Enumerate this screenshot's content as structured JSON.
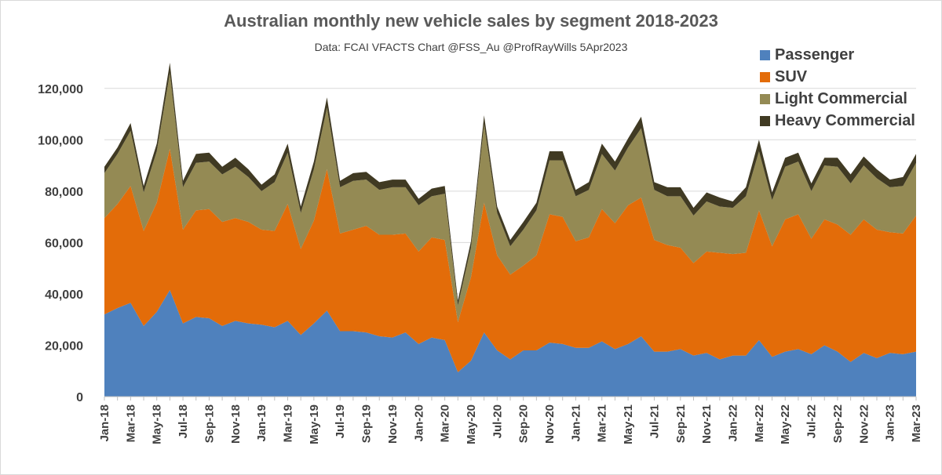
{
  "chart_data": {
    "type": "area",
    "stacked": true,
    "title": "Australian monthly new vehicle sales by segment 2018-2023",
    "subtitle": "Data: FCAI VFACTS  Chart @FSS_Au @ProfRayWills 5Apr2023",
    "xlabel": "",
    "ylabel": "",
    "ylim": [
      0,
      130000
    ],
    "yticks": [
      0,
      20000,
      40000,
      60000,
      80000,
      100000,
      120000
    ],
    "ytick_labels": [
      "0",
      "20,000",
      "40,000",
      "60,000",
      "80,000",
      "100,000",
      "120,000"
    ],
    "grid": true,
    "legend_position": "top-right",
    "categories": [
      "Jan-18",
      "Feb-18",
      "Mar-18",
      "Apr-18",
      "May-18",
      "Jun-18",
      "Jul-18",
      "Aug-18",
      "Sep-18",
      "Oct-18",
      "Nov-18",
      "Dec-18",
      "Jan-19",
      "Feb-19",
      "Mar-19",
      "Apr-19",
      "May-19",
      "Jun-19",
      "Jul-19",
      "Aug-19",
      "Sep-19",
      "Oct-19",
      "Nov-19",
      "Dec-19",
      "Jan-20",
      "Feb-20",
      "Mar-20",
      "Apr-20",
      "May-20",
      "Jun-20",
      "Jul-20",
      "Aug-20",
      "Sep-20",
      "Oct-20",
      "Nov-20",
      "Dec-20",
      "Jan-21",
      "Feb-21",
      "Mar-21",
      "Apr-21",
      "May-21",
      "Jun-21",
      "Jul-21",
      "Aug-21",
      "Sep-21",
      "Oct-21",
      "Nov-21",
      "Dec-21",
      "Jan-22",
      "Feb-22",
      "Mar-22",
      "Apr-22",
      "May-22",
      "Jun-22",
      "Jul-22",
      "Aug-22",
      "Sep-22",
      "Oct-22",
      "Nov-22",
      "Dec-22",
      "Jan-23",
      "Feb-23",
      "Mar-23"
    ],
    "x_tick_labels": [
      "Jan-18",
      "Mar-18",
      "May-18",
      "Jul-18",
      "Sep-18",
      "Nov-18",
      "Jan-19",
      "Mar-19",
      "May-19",
      "Jul-19",
      "Sep-19",
      "Nov-19",
      "Jan-20",
      "Mar-20",
      "May-20",
      "Jul-20",
      "Sep-20",
      "Nov-20",
      "Jan-21",
      "Mar-21",
      "May-21",
      "Jul-21",
      "Sep-21",
      "Nov-21",
      "Jan-22",
      "Mar-22",
      "May-22",
      "Jul-22",
      "Sep-22",
      "Nov-22",
      "Jan-23",
      "Mar-23"
    ],
    "series": [
      {
        "name": "Passenger",
        "color": "#4f81bd",
        "values": [
          32000,
          34500,
          36500,
          27500,
          33000,
          41500,
          28500,
          31000,
          30500,
          27500,
          29500,
          28500,
          28000,
          27000,
          29500,
          24000,
          28500,
          33500,
          25500,
          25500,
          25000,
          23500,
          23000,
          25000,
          20500,
          23000,
          22000,
          9500,
          14000,
          25000,
          18000,
          14500,
          18000,
          18000,
          21000,
          20500,
          19000,
          19000,
          21500,
          18500,
          20500,
          23500,
          17500,
          17500,
          18500,
          16000,
          17000,
          14500,
          16000,
          16000,
          22000,
          15500,
          17500,
          18500,
          16500,
          20000,
          17500,
          13500,
          17000,
          15000,
          17000,
          16500,
          17500
        ]
      },
      {
        "name": "SUV",
        "color": "#e36c09",
        "values": [
          37500,
          40500,
          45500,
          37000,
          42500,
          55000,
          36500,
          41500,
          42500,
          40500,
          40000,
          39500,
          37000,
          37500,
          45500,
          33500,
          40000,
          55000,
          38000,
          39500,
          41500,
          39500,
          40000,
          38500,
          36000,
          39000,
          39000,
          19500,
          32500,
          50500,
          37000,
          33000,
          33000,
          37000,
          50000,
          49500,
          41500,
          43000,
          51500,
          49000,
          54000,
          54000,
          43500,
          41500,
          39500,
          36000,
          39500,
          41500,
          39500,
          40000,
          50500,
          43000,
          51500,
          52500,
          45000,
          49000,
          49500,
          49500,
          52000,
          50000,
          47000,
          47000,
          53000
        ]
      },
      {
        "name": "Light Commercial",
        "color": "#948a54",
        "values": [
          17500,
          19500,
          21500,
          15000,
          20000,
          29500,
          16500,
          18500,
          18500,
          18500,
          20000,
          17500,
          15000,
          19000,
          20000,
          14000,
          20000,
          24000,
          18000,
          19000,
          18000,
          17500,
          18500,
          18000,
          18000,
          16000,
          18000,
          6500,
          11500,
          30500,
          16500,
          11000,
          14000,
          17500,
          21000,
          22000,
          17500,
          18500,
          21500,
          20500,
          22500,
          27000,
          19500,
          19000,
          20000,
          18500,
          19500,
          18000,
          18000,
          22000,
          23000,
          18000,
          20500,
          20500,
          18500,
          21000,
          22500,
          20000,
          21000,
          20000,
          17500,
          18500,
          20500
        ]
      },
      {
        "name": "Heavy Commercial",
        "color": "#403a23",
        "values": [
          2500,
          2500,
          3000,
          2500,
          3000,
          4000,
          2500,
          3500,
          3500,
          3000,
          3500,
          3000,
          2500,
          3000,
          3500,
          2500,
          3000,
          4000,
          2500,
          3000,
          3000,
          3000,
          3000,
          3000,
          2500,
          3000,
          3000,
          2000,
          2500,
          3500,
          2500,
          2500,
          3000,
          3000,
          3500,
          3500,
          2500,
          3000,
          4000,
          3500,
          3500,
          4500,
          3000,
          3500,
          3500,
          3000,
          3500,
          3500,
          2500,
          3500,
          4500,
          3000,
          3500,
          3500,
          3000,
          3000,
          3500,
          3500,
          3500,
          3500,
          3000,
          3500,
          3500
        ]
      }
    ]
  }
}
